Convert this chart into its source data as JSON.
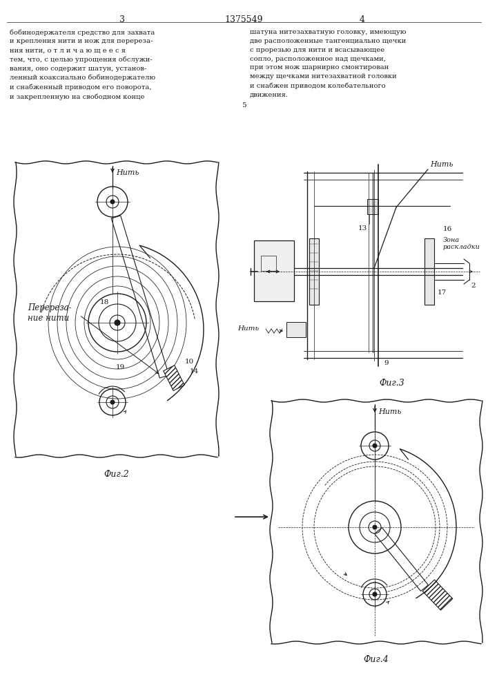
{
  "bg_color": "#ffffff",
  "line_color": "#1a1a1a",
  "title_text": "1375549",
  "page_left": "3",
  "page_right": "4",
  "fig2_label": "Фиг.2",
  "fig3_label": "Фиг.3",
  "fig4_label": "Фиг.4",
  "text_left": "бобинодержателя средство для захвата\nи крепления нити и нож для перереза-\nния нити, о т л и ч а ю щ е е с я\nтем, что, с целью упрощения обслужи-\nвания, оно содержит шатун, установ-\nленный коаксиально бобинодержателю\nи снабженный приводом его поворота,\nи закрепленную на свободном конце",
  "text_right": "шатуна нитезахватную головку, имеющую\nдве расположенные тангенциально щечки\nс прорезью для нити и всасывающее\nсопло, расположенное над щечками,\nпри этом нож шарнирно смонтирован\nмежду щечками нитезахватной головки\nи снабжен приводом колебательного\nдвижения.",
  "fig2_nit_label": "Нить",
  "fig4_nit_label": "Нить",
  "fig2_annotation": "Перереза-\nние нити",
  "fig3_nit_top": "Нить",
  "fig3_nit_bot": "Нить",
  "zona_text": "Зона\nраскладки"
}
